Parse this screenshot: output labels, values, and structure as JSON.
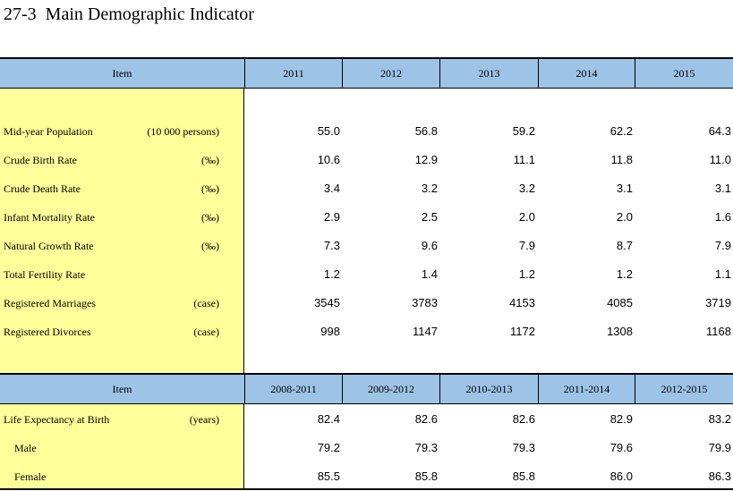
{
  "title": "27-3  Main Demographic Indicator",
  "section1": {
    "header": {
      "item": "Item",
      "years": [
        "2011",
        "2012",
        "2013",
        "2014",
        "2015"
      ]
    },
    "rows": [
      {
        "label": "Mid-year Population",
        "unit": "(10 000 persons)",
        "values": [
          "55.0",
          "56.8",
          "59.2",
          "62.2",
          "64.3"
        ]
      },
      {
        "label": "Crude Birth Rate",
        "unit": "(‰)",
        "values": [
          "10.6",
          "12.9",
          "11.1",
          "11.8",
          "11.0"
        ]
      },
      {
        "label": "Crude Death Rate",
        "unit": "(‰)",
        "values": [
          "3.4",
          "3.2",
          "3.2",
          "3.1",
          "3.1"
        ]
      },
      {
        "label": "Infant Mortality Rate",
        "unit": "(‰)",
        "values": [
          "2.9",
          "2.5",
          "2.0",
          "2.0",
          "1.6"
        ]
      },
      {
        "label": "Natural Growth Rate",
        "unit": "(‰)",
        "values": [
          "7.3",
          "9.6",
          "7.9",
          "8.7",
          "7.9"
        ]
      },
      {
        "label": "Total Fertility Rate",
        "unit": "",
        "values": [
          "1.2",
          "1.4",
          "1.2",
          "1.2",
          "1.1"
        ]
      },
      {
        "label": "Registered Marriages",
        "unit": "(case)",
        "values": [
          "3545",
          "3783",
          "4153",
          "4085",
          "3719"
        ]
      },
      {
        "label": "Registered Divorces",
        "unit": "(case)",
        "values": [
          "998",
          "1147",
          "1172",
          "1308",
          "1168"
        ]
      }
    ]
  },
  "section2": {
    "header": {
      "item": "Item",
      "periods": [
        "2008-2011",
        "2009-2012",
        "2010-2013",
        "2011-2014",
        "2012-2015"
      ]
    },
    "rows": [
      {
        "label": "Life Expectancy at Birth",
        "unit": "(years)",
        "values": [
          "82.4",
          "82.6",
          "82.6",
          "82.9",
          "83.2"
        ],
        "indent": false
      },
      {
        "label": "Male",
        "unit": "",
        "values": [
          "79.2",
          "79.3",
          "79.3",
          "79.6",
          "79.9"
        ],
        "indent": true
      },
      {
        "label": "Female",
        "unit": "",
        "values": [
          "85.5",
          "85.8",
          "85.8",
          "86.0",
          "86.3"
        ],
        "indent": true
      }
    ]
  }
}
